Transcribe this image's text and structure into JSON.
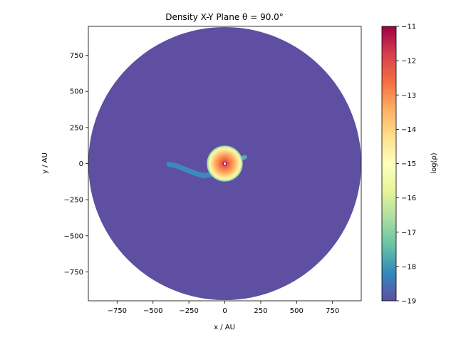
{
  "chart_data": {
    "type": "heatmap",
    "title": "Density X-Y Plane θ =  90.0°",
    "xlabel": "x / AU",
    "ylabel": "y / AU",
    "colorbar_label": "log(ρ)",
    "xlim": [
      -950,
      950
    ],
    "ylim": [
      -950,
      950
    ],
    "xticks": [
      -750,
      -500,
      -250,
      0,
      250,
      500,
      750
    ],
    "yticks": [
      -750,
      -500,
      -250,
      0,
      250,
      500,
      750
    ],
    "xtick_labels": [
      "−750",
      "−500",
      "−250",
      "0",
      "250",
      "500",
      "750"
    ],
    "ytick_labels": [
      "−750",
      "−500",
      "−250",
      "0",
      "250",
      "500",
      "750"
    ],
    "colorbar": {
      "colormap": "Spectral_r",
      "range": [
        -19,
        -11
      ],
      "ticks": [
        -11,
        -12,
        -13,
        -14,
        -15,
        -16,
        -17,
        -18,
        -19
      ],
      "tick_labels": [
        "−11",
        "−12",
        "−13",
        "−14",
        "−15",
        "−16",
        "−17",
        "−18",
        "−19"
      ]
    },
    "features": {
      "domain_radius_au": 950,
      "background_log_density": -19,
      "core": {
        "center_au": [
          0,
          0
        ],
        "radius_au": 115,
        "peak_log_density": -11,
        "edge_log_density": -15.3
      },
      "spiral_arm": {
        "log_density": -17.8,
        "points_au": [
          [
            -30,
            -50
          ],
          [
            -80,
            -70
          ],
          [
            -140,
            -85
          ],
          [
            -200,
            -70
          ],
          [
            -250,
            -50
          ],
          [
            -300,
            -30
          ],
          [
            -340,
            -15
          ],
          [
            -390,
            -5
          ]
        ]
      },
      "right_tail": {
        "log_density": -17.5,
        "points_au": [
          [
            105,
            30
          ],
          [
            140,
            45
          ]
        ]
      }
    }
  }
}
